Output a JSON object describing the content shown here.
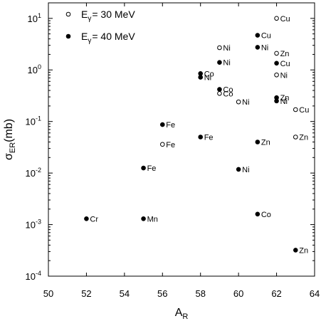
{
  "chart_data": {
    "type": "scatter",
    "title": "",
    "xlabel": {
      "main": "A",
      "sub": "R"
    },
    "ylabel": {
      "main": "σ",
      "sub": "ER",
      "rest": "(mb)"
    },
    "x_range": [
      50,
      64
    ],
    "y_range": [
      0.0001,
      20
    ],
    "y_scale": "log",
    "x_ticks": [
      50,
      52,
      54,
      56,
      58,
      60,
      62,
      64
    ],
    "y_ticks": [
      {
        "value": 0.0001,
        "base": "10",
        "exp": "-4"
      },
      {
        "value": 0.001,
        "base": "10",
        "exp": "-3"
      },
      {
        "value": 0.01,
        "base": "10",
        "exp": "-2"
      },
      {
        "value": 0.1,
        "base": "10",
        "exp": "-1"
      },
      {
        "value": 1,
        "base": "10",
        "exp": "0"
      },
      {
        "value": 10,
        "base": "10",
        "exp": "1"
      }
    ],
    "legend_position": "top-left",
    "series": [
      {
        "legend": {
          "main": "E",
          "sub": "γ",
          "rest": "= 30 MeV"
        },
        "marker": "open-circle",
        "points": [
          {
            "x": 62,
            "y": 10,
            "label": "Cu"
          },
          {
            "x": 59,
            "y": 2.7,
            "label": "Ni"
          },
          {
            "x": 62,
            "y": 2.1,
            "label": "Zn"
          },
          {
            "x": 62,
            "y": 0.8,
            "label": "Ni"
          },
          {
            "x": 59,
            "y": 0.35,
            "label": "Co"
          },
          {
            "x": 60,
            "y": 0.24,
            "label": "Ni"
          },
          {
            "x": 63,
            "y": 0.17,
            "label": "Cu"
          },
          {
            "x": 63,
            "y": 0.05,
            "label": "Zn"
          },
          {
            "x": 56,
            "y": 0.036,
            "label": "Fe"
          }
        ]
      },
      {
        "legend": {
          "main": "E",
          "sub": "γ",
          "rest": "= 40 MeV"
        },
        "marker": "filled-circle",
        "points": [
          {
            "x": 61,
            "y": 4.7,
            "label": "Cu"
          },
          {
            "x": 61,
            "y": 2.75,
            "label": "Ni"
          },
          {
            "x": 59,
            "y": 1.4,
            "label": "Ni"
          },
          {
            "x": 62,
            "y": 1.35,
            "label": "Cu"
          },
          {
            "x": 58,
            "y": 0.85,
            "label": "Co"
          },
          {
            "x": 58,
            "y": 0.72,
            "label": "Ni"
          },
          {
            "x": 59,
            "y": 0.42,
            "label": "Co"
          },
          {
            "x": 62,
            "y": 0.29,
            "label": "Zn"
          },
          {
            "x": 62,
            "y": 0.25,
            "label": "Ni"
          },
          {
            "x": 56,
            "y": 0.087,
            "label": "Fe"
          },
          {
            "x": 58,
            "y": 0.05,
            "label": "Fe"
          },
          {
            "x": 61,
            "y": 0.04,
            "label": "Zn"
          },
          {
            "x": 55,
            "y": 0.0125,
            "label": "Fe"
          },
          {
            "x": 60,
            "y": 0.0118,
            "label": "Ni"
          },
          {
            "x": 61,
            "y": 0.0016,
            "label": "Co"
          },
          {
            "x": 52,
            "y": 0.0013,
            "label": "Cr"
          },
          {
            "x": 55,
            "y": 0.0013,
            "label": "Mn"
          },
          {
            "x": 63,
            "y": 0.00032,
            "label": "Zn"
          }
        ]
      }
    ]
  }
}
